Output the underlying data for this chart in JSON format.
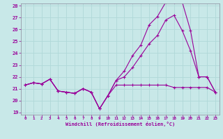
{
  "background_color": "#c8e8e8",
  "grid_color": "#b0d8d8",
  "line_color": "#990099",
  "xlabel": "Windchill (Refroidissement éolien,°C)",
  "ylim": [
    19,
    28
  ],
  "xlim": [
    -0.5,
    23.5
  ],
  "yticks": [
    19,
    20,
    21,
    22,
    23,
    24,
    25,
    26,
    27,
    28
  ],
  "xticks": [
    0,
    1,
    2,
    3,
    4,
    5,
    6,
    7,
    8,
    9,
    10,
    11,
    12,
    13,
    14,
    15,
    16,
    17,
    18,
    19,
    20,
    21,
    22,
    23
  ],
  "series1_x": [
    0,
    1,
    2,
    3,
    4,
    5,
    6,
    7,
    8,
    9,
    10,
    11,
    12,
    13,
    14,
    15,
    16,
    17,
    18,
    19,
    20,
    21,
    22,
    23
  ],
  "series1_y": [
    21.3,
    21.5,
    21.4,
    21.8,
    20.8,
    20.7,
    20.6,
    21.0,
    20.7,
    19.3,
    20.4,
    21.3,
    21.3,
    21.3,
    21.3,
    21.3,
    21.3,
    21.3,
    21.1,
    21.1,
    21.1,
    21.1,
    21.1,
    20.7
  ],
  "series2_x": [
    0,
    1,
    2,
    3,
    4,
    5,
    6,
    7,
    8,
    9,
    10,
    11,
    12,
    13,
    14,
    15,
    16,
    17,
    18,
    19,
    20,
    21,
    22,
    23
  ],
  "series2_y": [
    21.3,
    21.5,
    21.4,
    21.8,
    20.8,
    20.7,
    20.6,
    21.0,
    20.7,
    19.3,
    20.4,
    21.7,
    22.5,
    23.8,
    24.7,
    26.4,
    27.1,
    28.3,
    28.3,
    28.3,
    25.9,
    22.0,
    22.0,
    20.7
  ],
  "series3_x": [
    0,
    1,
    2,
    3,
    4,
    5,
    6,
    7,
    8,
    9,
    10,
    11,
    12,
    13,
    14,
    15,
    16,
    17,
    18,
    19,
    20,
    21,
    22,
    23
  ],
  "series3_y": [
    21.3,
    21.5,
    21.4,
    21.8,
    20.8,
    20.7,
    20.6,
    21.0,
    20.7,
    19.3,
    20.4,
    21.7,
    22.0,
    22.8,
    23.8,
    24.8,
    25.5,
    26.8,
    27.2,
    25.9,
    24.2,
    22.0,
    22.0,
    20.7
  ]
}
